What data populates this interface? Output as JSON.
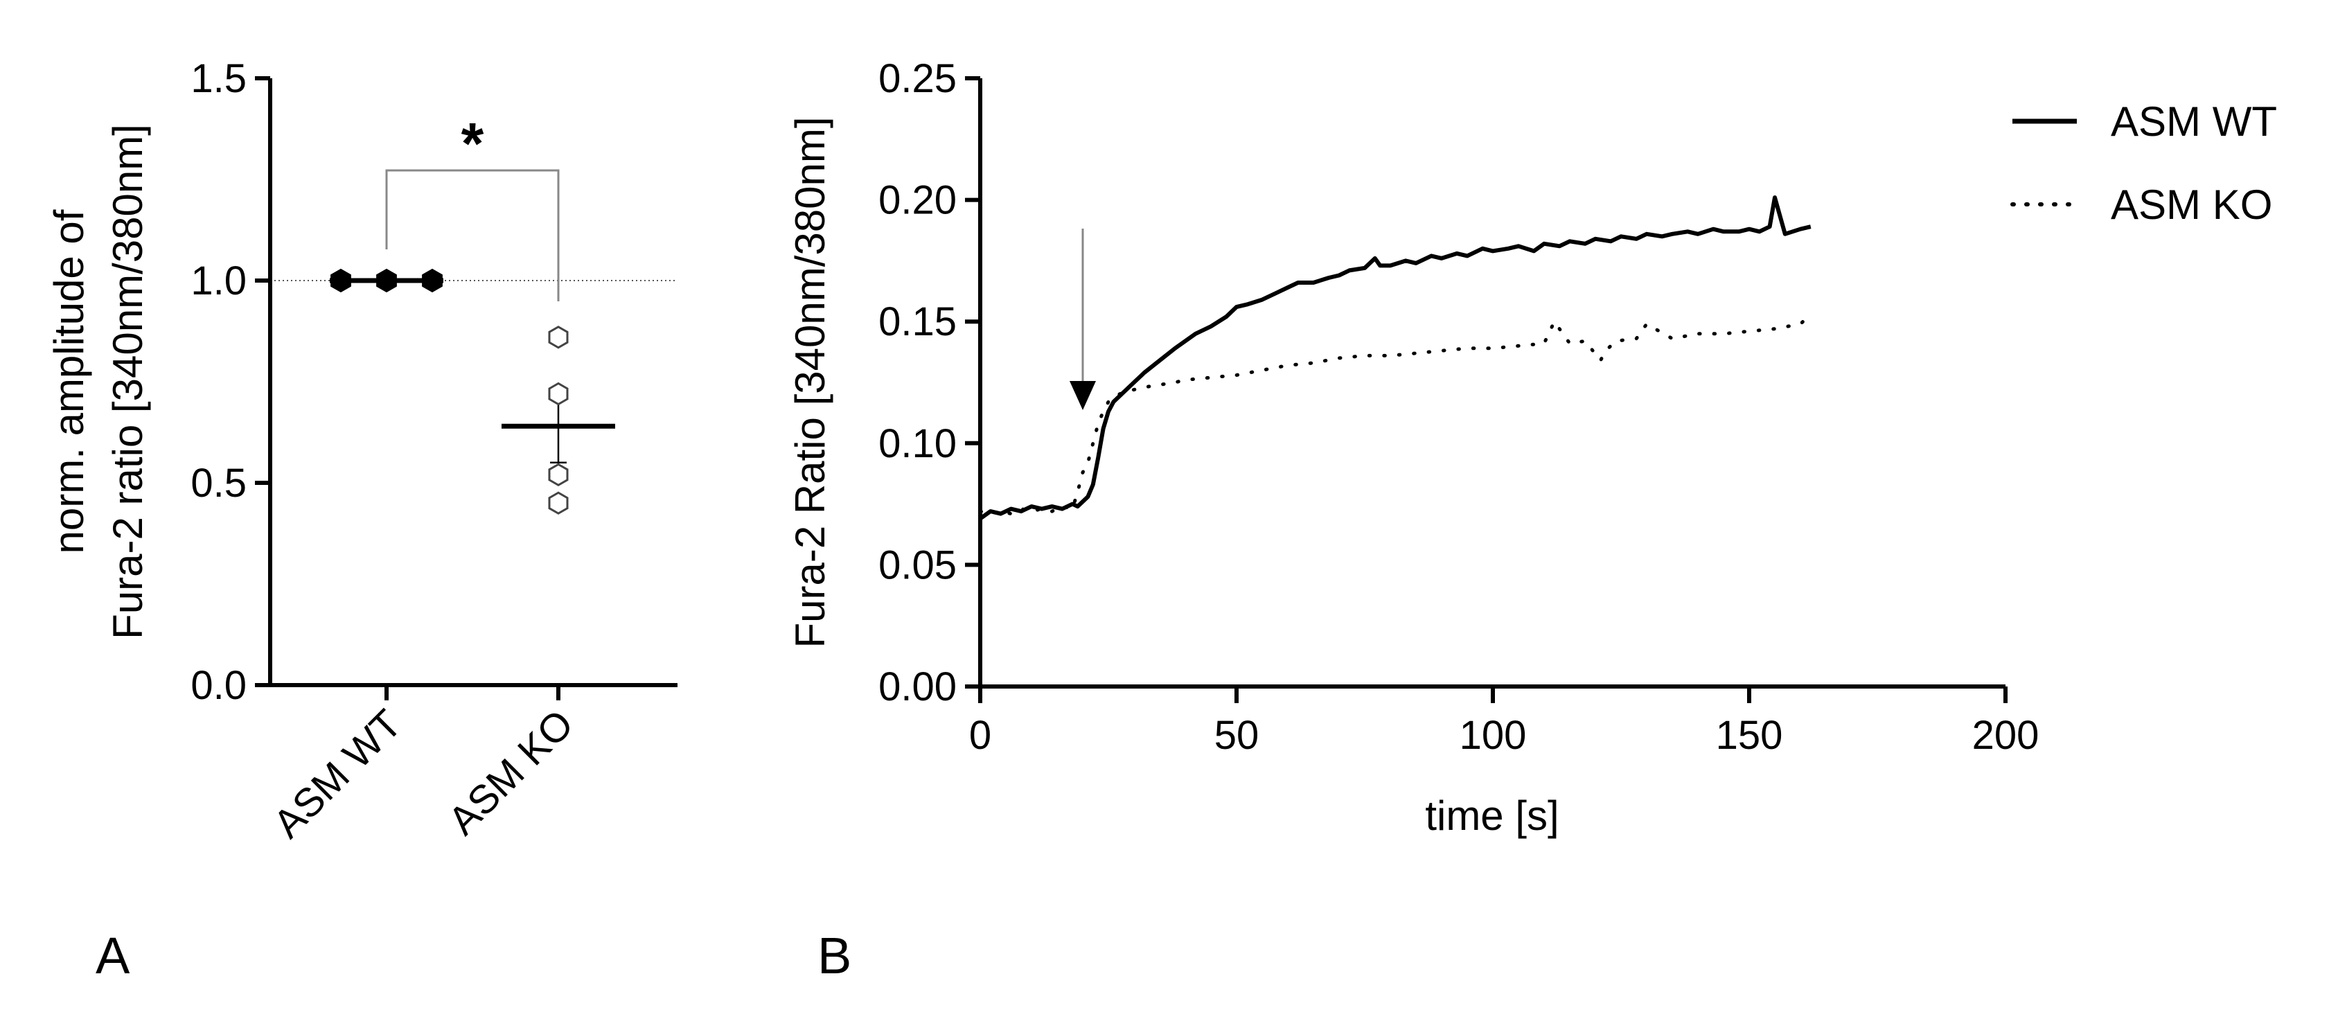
{
  "colors": {
    "line": "#000000",
    "reference": "#555555",
    "bracket": "#888888",
    "arrow": "#888888"
  },
  "chart_data": [
    {
      "panel_label": "A",
      "type": "scatter",
      "categories": [
        "ASM WT",
        "ASM KO"
      ],
      "ylabel": "norm. amplitude of Fura-2 ratio [340nm/380nm]",
      "ylabel_lines": [
        "norm. amplitude of",
        "Fura-2 ratio [340nm/380nm]"
      ],
      "ylim": [
        0,
        1.5
      ],
      "yticks": [
        0.0,
        0.5,
        1.0,
        1.5
      ],
      "ytick_labels": [
        "0.0",
        "0.5",
        "1.0",
        "1.5"
      ],
      "reference_line": 1.0,
      "series": [
        {
          "category": "ASM WT",
          "points": [
            1.0,
            1.0,
            1.0
          ],
          "mean": 1.0,
          "sem": 0.0,
          "marker": "filled-hexagon"
        },
        {
          "category": "ASM KO",
          "points": [
            0.86,
            0.72,
            0.52,
            0.45
          ],
          "mean": 0.64,
          "sem": 0.09,
          "marker": "open-hexagon"
        }
      ],
      "significance": {
        "label": "*",
        "between": [
          "ASM WT",
          "ASM KO"
        ]
      }
    },
    {
      "panel_label": "B",
      "type": "line",
      "xlabel": "time [s]",
      "ylabel": "Fura-2 Ratio [340nm/380nm]",
      "xlim": [
        0,
        200
      ],
      "ylim": [
        0,
        0.25
      ],
      "xticks": [
        0,
        50,
        100,
        150,
        200
      ],
      "xtick_labels": [
        "0",
        "50",
        "100",
        "150",
        "200"
      ],
      "yticks": [
        0,
        0.05,
        0.1,
        0.15,
        0.2,
        0.25
      ],
      "ytick_labels": [
        "0.00",
        "0.05",
        "0.10",
        "0.15",
        "0.20",
        "0.25"
      ],
      "legend_position": "top-right",
      "arrow_annotation_time": 20,
      "series": [
        {
          "name": "ASM WT",
          "style": "solid",
          "x": [
            0,
            2,
            4,
            6,
            8,
            10,
            12,
            14,
            16,
            18,
            19,
            20,
            21,
            22,
            23,
            24,
            25,
            26,
            28,
            30,
            32,
            35,
            38,
            40,
            42,
            45,
            48,
            50,
            52,
            55,
            58,
            60,
            62,
            65,
            68,
            70,
            72,
            75,
            77,
            78,
            80,
            83,
            85,
            88,
            90,
            93,
            95,
            98,
            100,
            103,
            105,
            108,
            110,
            113,
            115,
            118,
            120,
            123,
            125,
            128,
            130,
            133,
            135,
            138,
            140,
            143,
            145,
            148,
            150,
            152,
            154,
            155,
            157,
            160,
            162
          ],
          "y": [
            0.069,
            0.072,
            0.071,
            0.073,
            0.072,
            0.074,
            0.073,
            0.074,
            0.073,
            0.075,
            0.074,
            0.076,
            0.078,
            0.083,
            0.094,
            0.106,
            0.113,
            0.117,
            0.121,
            0.125,
            0.129,
            0.134,
            0.139,
            0.142,
            0.145,
            0.148,
            0.152,
            0.156,
            0.157,
            0.159,
            0.162,
            0.164,
            0.166,
            0.166,
            0.168,
            0.169,
            0.171,
            0.172,
            0.176,
            0.173,
            0.173,
            0.175,
            0.174,
            0.177,
            0.176,
            0.178,
            0.177,
            0.18,
            0.179,
            0.18,
            0.181,
            0.179,
            0.182,
            0.181,
            0.183,
            0.182,
            0.184,
            0.183,
            0.185,
            0.184,
            0.186,
            0.185,
            0.186,
            0.187,
            0.186,
            0.188,
            0.187,
            0.187,
            0.188,
            0.187,
            0.189,
            0.201,
            0.186,
            0.188,
            0.189
          ]
        },
        {
          "name": "ASM KO",
          "style": "dotted",
          "x": [
            0,
            2,
            4,
            6,
            8,
            10,
            12,
            14,
            16,
            18,
            19,
            20,
            21,
            22,
            23,
            24,
            25,
            26,
            28,
            30,
            32,
            35,
            38,
            40,
            45,
            50,
            55,
            60,
            65,
            70,
            75,
            80,
            85,
            90,
            95,
            100,
            105,
            110,
            112,
            115,
            118,
            121,
            122,
            124,
            128,
            130,
            135,
            140,
            145,
            150,
            155,
            160,
            162
          ],
          "y": [
            0.072,
            0.071,
            0.072,
            0.071,
            0.073,
            0.072,
            0.073,
            0.072,
            0.074,
            0.073,
            0.08,
            0.088,
            0.092,
            0.1,
            0.108,
            0.113,
            0.117,
            0.119,
            0.121,
            0.122,
            0.123,
            0.124,
            0.125,
            0.126,
            0.127,
            0.128,
            0.13,
            0.132,
            0.133,
            0.135,
            0.136,
            0.136,
            0.137,
            0.138,
            0.139,
            0.139,
            0.14,
            0.141,
            0.15,
            0.141,
            0.142,
            0.134,
            0.138,
            0.142,
            0.143,
            0.149,
            0.143,
            0.145,
            0.145,
            0.146,
            0.147,
            0.149,
            0.153
          ]
        }
      ]
    }
  ]
}
